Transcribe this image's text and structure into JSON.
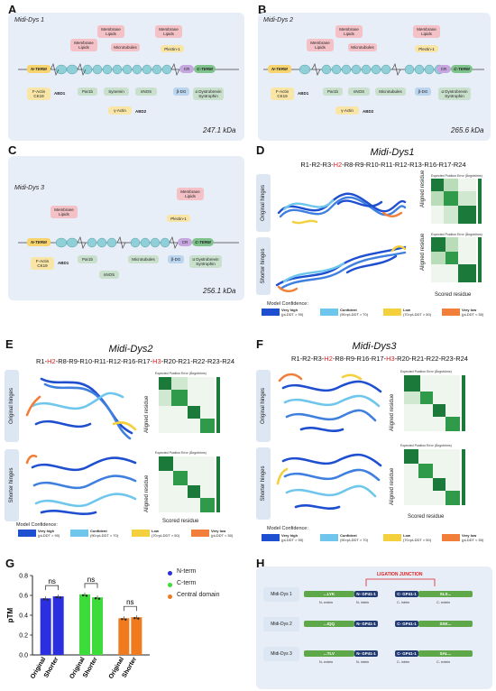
{
  "panels": {
    "A": "A",
    "B": "B",
    "C": "C",
    "D": "D",
    "E": "E",
    "F": "F",
    "G": "G",
    "H": "H"
  },
  "schematics": {
    "A": {
      "name": "Midi-Dys 1",
      "kda": "247.1 kDa"
    },
    "B": {
      "name": "Midi-Dys 2",
      "kda": "265.6 kDa"
    },
    "C": {
      "name": "Midi-Dys 3",
      "kda": "256.1 kDa"
    }
  },
  "labels": {
    "membrane": "Membrane Lipids",
    "microtubules": "Microtubules",
    "plectin": "Plectin-1",
    "nterm": "N-TERM",
    "cterm": "C-TERM",
    "cr": "CR",
    "factin": "F-Actin CK19",
    "abd1": "ABD1",
    "abd2": "ABD2",
    "par1b": "Par1b",
    "synemin": "Synemin",
    "nnos": "nNOS",
    "gactin": "γ-Actin",
    "bdg": "β-DG",
    "adys": "α Dystrobrevin Syntrophin",
    "h1": "H1",
    "h2": "H2",
    "h3": "H3",
    "h4": "H4"
  },
  "structures": {
    "D": {
      "title": "Midi-Dys1",
      "seq_a": "R1-R2-R3-",
      "seq_h": "H2",
      "seq_b": "-R8-R9-R10-R11-R12-R13-R16-R17-R24"
    },
    "E": {
      "title": "Midi-Dys2",
      "seq_a": "R1-",
      "seq_h": "H2",
      "seq_b": "-R8-R9-R10-R11-R12-R16-R17-",
      "seq_h2": "H3",
      "seq_c": "-R20-R21-R22-R23-R24"
    },
    "F": {
      "title": "Midi-Dys3",
      "seq_a": "R1-R2-R3-",
      "seq_h": "H2",
      "seq_b": "-R8-R9-R16-R17-",
      "seq_h2": "H3",
      "seq_c": "-R20-R21-R22-R23-R24"
    },
    "orig": "Original hinges",
    "short": "Shorter hinges",
    "pae": "Expected Position Error (Ångströms)",
    "aligned": "Aligned residue",
    "scored": "Scored residue",
    "conf_title": "Model Confidence:",
    "conf": [
      {
        "label": "Very high",
        "sub": "(pLDDT > 90)",
        "color": "#1f4fd1"
      },
      {
        "label": "Confident",
        "sub": "(90>pLDDT > 70)",
        "color": "#6ec6ec"
      },
      {
        "label": "Low",
        "sub": "(70>pLDDT > 50)",
        "color": "#f4d13c"
      },
      {
        "label": "Very low",
        "sub": "(pLDDT < 50)",
        "color": "#f17f3a"
      }
    ]
  },
  "chart_data": {
    "type": "bar",
    "ylabel": "pTM",
    "ylim": [
      0,
      0.8
    ],
    "yticks": [
      0.0,
      0.2,
      0.4,
      0.6,
      0.8
    ],
    "categories": [
      "Original",
      "Shorter"
    ],
    "series": [
      {
        "name": "N-term",
        "color": "#2b2fe0",
        "values": [
          0.57,
          0.59
        ]
      },
      {
        "name": "C-term",
        "color": "#3ddc3a",
        "values": [
          0.61,
          0.58
        ]
      },
      {
        "name": "Central domain",
        "color": "#f07a1e",
        "values": [
          0.37,
          0.38
        ]
      }
    ],
    "significance": "ns"
  },
  "ligation": {
    "junction": "LIGATION JUNCTION",
    "rows": [
      {
        "name": "Midi-Dys 1",
        "n_seq": "...LYK",
        "c_seq": "SLS..."
      },
      {
        "name": "Midi-Dys 2",
        "n_seq": "...IQQ",
        "c_seq": "SSK..."
      },
      {
        "name": "Midi-Dys 3",
        "n_seq": "...TLV",
        "c_seq": "SAL..."
      }
    ],
    "n_intein": "N- GP41-1",
    "c_intein": "C- GP41-1",
    "n_extein": "N- extein",
    "n_intein_lbl": "N- intein",
    "c_intein_lbl": "C- intein",
    "c_extein": "C- extein"
  }
}
